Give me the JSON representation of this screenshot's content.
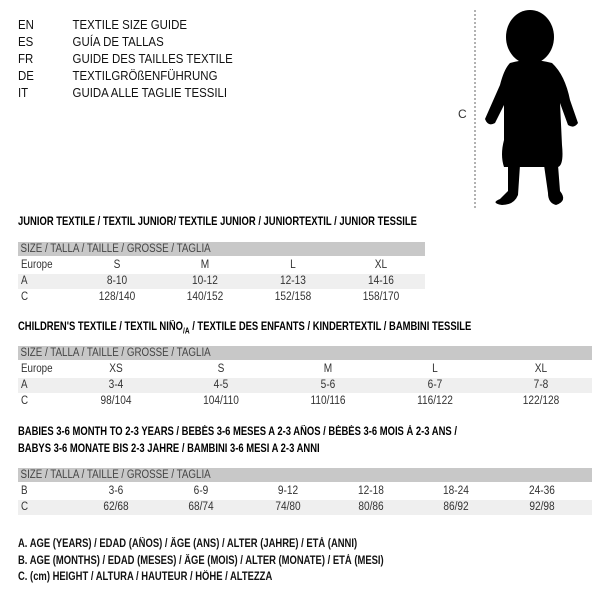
{
  "header": [
    {
      "code": "EN",
      "text": "TEXTILE SIZE GUIDE"
    },
    {
      "code": "ES",
      "text": "GUÍA DE TALLAS"
    },
    {
      "code": "FR",
      "text": "GUIDE DES TAILLES TEXTILE"
    },
    {
      "code": "DE",
      "text": "TEXTILGRÖßENFÜHRUNG"
    },
    {
      "code": "IT",
      "text": "GUIDA ALLE TAGLIE TESSILI"
    }
  ],
  "figure": {
    "label": "C",
    "icon": "baby-silhouette-icon"
  },
  "size_label": "SIZE / TALLA / TAILLE / GRÖSSE / TAGLIA",
  "junior": {
    "title": "JUNIOR TEXTILE / TEXTIL JUNIOR/ TEXTILE JUNIOR / JUNIORTEXTIL / JUNIOR TESSILE",
    "rows": [
      {
        "label": "Europe",
        "cells": [
          "S",
          "M",
          "L",
          "XL"
        ]
      },
      {
        "label": "A",
        "cells": [
          "8-10",
          "10-12",
          "12-13",
          "14-16"
        ]
      },
      {
        "label": "C",
        "cells": [
          "128/140",
          "140/152",
          "152/158",
          "158/170"
        ]
      }
    ]
  },
  "children": {
    "title_a": "CHILDREN'S TEXTILE / TEXTIL NIÑO",
    "title_sub": "/A",
    "title_b": " / TEXTILE DES ENFANTS / KINDERTEXTIL / BAMBINI TESSILE",
    "rows": [
      {
        "label": "Europe",
        "cells": [
          "XS",
          "S",
          "M",
          "L",
          "XL"
        ]
      },
      {
        "label": "A",
        "cells": [
          "3-4",
          "4-5",
          "5-6",
          "6-7",
          "7-8"
        ]
      },
      {
        "label": "C",
        "cells": [
          "98/104",
          "104/110",
          "110/116",
          "116/122",
          "122/128"
        ]
      }
    ]
  },
  "babies": {
    "title_1": "BABIES 3-6 MONTH TO 2-3 YEARS / BEBÉS 3-6 MESES A 2-3 AÑOS / BÉBÉS 3-6 MOIS À 2-3 ANS /",
    "title_2": "BABYS 3-6 MONATE BIS 2-3 JAHRE / BAMBINI 3-6 MESI A 2-3 ANNI",
    "rows": [
      {
        "label": "B",
        "cells": [
          "3-6",
          "6-9",
          "9-12",
          "12-18",
          "18-24",
          "24-36"
        ]
      },
      {
        "label": "C",
        "cells": [
          "62/68",
          "68/74",
          "74/80",
          "80/86",
          "86/92",
          "92/98"
        ]
      }
    ]
  },
  "legend": [
    "A. AGE (YEARS) / EDAD (AÑOS) / ÂGE (ANS) / ALTER (JAHRE) / ETÀ (ANNI)",
    "B. AGE (MONTHS) / EDAD (MESES) / ÂGE (MOIS) / ALTER (MONATE) / ETÀ (MESI)",
    "C. (cm) HEIGHT / ALTURA / HAUTEUR / HÖHE / ALTEZZA"
  ]
}
